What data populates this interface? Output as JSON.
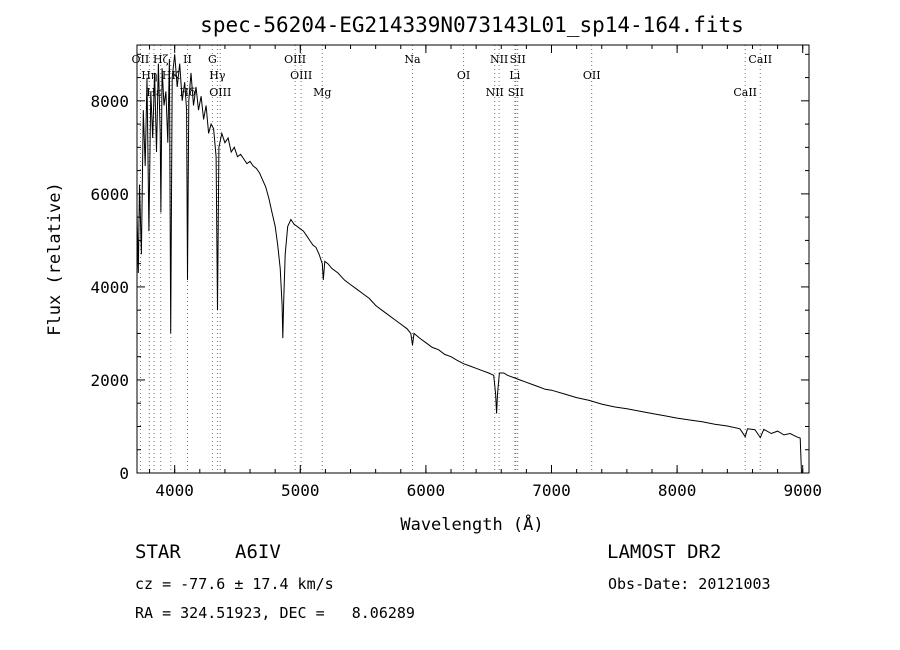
{
  "chart_data": {
    "type": "line",
    "title": "spec-56204-EG214339N073143L01_sp14-164.fits",
    "xlabel": "Wavelength (Å)",
    "ylabel": "Flux (relative)",
    "xlim": [
      3700,
      9050
    ],
    "ylim": [
      0,
      9200
    ],
    "grid": false,
    "xticks": [
      4000,
      5000,
      6000,
      7000,
      8000,
      9000
    ],
    "yticks": [
      0,
      2000,
      4000,
      6000,
      8000
    ],
    "series": [
      {
        "values": [
          [
            3700,
            5600
          ],
          [
            3710,
            4300
          ],
          [
            3720,
            6200
          ],
          [
            3735,
            4700
          ],
          [
            3750,
            7800
          ],
          [
            3765,
            6600
          ],
          [
            3780,
            8500
          ],
          [
            3795,
            5200
          ],
          [
            3810,
            8200
          ],
          [
            3825,
            7200
          ],
          [
            3840,
            8600
          ],
          [
            3855,
            6900
          ],
          [
            3870,
            8800
          ],
          [
            3885,
            7300
          ],
          [
            3890,
            5600
          ],
          [
            3900,
            8700
          ],
          [
            3915,
            7900
          ],
          [
            3930,
            8200
          ],
          [
            3945,
            7100
          ],
          [
            3958,
            8900
          ],
          [
            3968,
            3000
          ],
          [
            3980,
            8500
          ],
          [
            4000,
            9000
          ],
          [
            4020,
            8300
          ],
          [
            4040,
            8800
          ],
          [
            4060,
            8000
          ],
          [
            4080,
            8400
          ],
          [
            4095,
            7800
          ],
          [
            4102,
            4150
          ],
          [
            4112,
            8000
          ],
          [
            4130,
            8600
          ],
          [
            4150,
            7900
          ],
          [
            4170,
            8300
          ],
          [
            4190,
            7800
          ],
          [
            4210,
            8100
          ],
          [
            4230,
            7600
          ],
          [
            4250,
            7900
          ],
          [
            4270,
            7300
          ],
          [
            4290,
            7500
          ],
          [
            4310,
            7400
          ],
          [
            4330,
            6800
          ],
          [
            4341,
            3500
          ],
          [
            4352,
            7000
          ],
          [
            4375,
            7300
          ],
          [
            4400,
            7100
          ],
          [
            4425,
            7200
          ],
          [
            4450,
            6900
          ],
          [
            4475,
            7000
          ],
          [
            4500,
            6800
          ],
          [
            4525,
            6850
          ],
          [
            4550,
            6750
          ],
          [
            4575,
            6650
          ],
          [
            4600,
            6700
          ],
          [
            4625,
            6600
          ],
          [
            4650,
            6550
          ],
          [
            4675,
            6450
          ],
          [
            4700,
            6300
          ],
          [
            4725,
            6150
          ],
          [
            4750,
            5900
          ],
          [
            4775,
            5600
          ],
          [
            4800,
            5300
          ],
          [
            4820,
            4900
          ],
          [
            4840,
            4400
          ],
          [
            4855,
            3600
          ],
          [
            4861,
            2900
          ],
          [
            4868,
            3700
          ],
          [
            4880,
            4700
          ],
          [
            4900,
            5300
          ],
          [
            4925,
            5450
          ],
          [
            4950,
            5350
          ],
          [
            4975,
            5300
          ],
          [
            5000,
            5250
          ],
          [
            5025,
            5200
          ],
          [
            5050,
            5100
          ],
          [
            5075,
            5000
          ],
          [
            5100,
            4900
          ],
          [
            5125,
            4850
          ],
          [
            5150,
            4700
          ],
          [
            5175,
            4500
          ],
          [
            5183,
            4150
          ],
          [
            5195,
            4550
          ],
          [
            5220,
            4500
          ],
          [
            5250,
            4400
          ],
          [
            5300,
            4300
          ],
          [
            5350,
            4150
          ],
          [
            5400,
            4050
          ],
          [
            5450,
            3950
          ],
          [
            5500,
            3850
          ],
          [
            5550,
            3750
          ],
          [
            5600,
            3600
          ],
          [
            5650,
            3500
          ],
          [
            5700,
            3400
          ],
          [
            5750,
            3300
          ],
          [
            5800,
            3200
          ],
          [
            5850,
            3100
          ],
          [
            5880,
            3000
          ],
          [
            5893,
            2750
          ],
          [
            5905,
            3000
          ],
          [
            5950,
            2900
          ],
          [
            6000,
            2800
          ],
          [
            6050,
            2700
          ],
          [
            6100,
            2650
          ],
          [
            6150,
            2550
          ],
          [
            6200,
            2500
          ],
          [
            6250,
            2420
          ],
          [
            6300,
            2350
          ],
          [
            6350,
            2300
          ],
          [
            6400,
            2250
          ],
          [
            6450,
            2200
          ],
          [
            6500,
            2150
          ],
          [
            6540,
            2100
          ],
          [
            6555,
            1700
          ],
          [
            6563,
            1280
          ],
          [
            6570,
            1700
          ],
          [
            6585,
            2150
          ],
          [
            6620,
            2150
          ],
          [
            6650,
            2100
          ],
          [
            6700,
            2050
          ],
          [
            6750,
            2000
          ],
          [
            6800,
            1950
          ],
          [
            6850,
            1900
          ],
          [
            6900,
            1850
          ],
          [
            6950,
            1800
          ],
          [
            7000,
            1780
          ],
          [
            7100,
            1700
          ],
          [
            7200,
            1620
          ],
          [
            7300,
            1560
          ],
          [
            7400,
            1480
          ],
          [
            7500,
            1420
          ],
          [
            7600,
            1380
          ],
          [
            7700,
            1330
          ],
          [
            7800,
            1280
          ],
          [
            7900,
            1230
          ],
          [
            8000,
            1180
          ],
          [
            8100,
            1140
          ],
          [
            8200,
            1100
          ],
          [
            8300,
            1050
          ],
          [
            8400,
            1010
          ],
          [
            8500,
            950
          ],
          [
            8542,
            780
          ],
          [
            8560,
            950
          ],
          [
            8620,
            930
          ],
          [
            8662,
            760
          ],
          [
            8690,
            940
          ],
          [
            8750,
            850
          ],
          [
            8800,
            900
          ],
          [
            8850,
            820
          ],
          [
            8900,
            850
          ],
          [
            8950,
            780
          ],
          [
            8980,
            750
          ],
          [
            8990,
            0
          ]
        ]
      }
    ],
    "lines": [
      {
        "x": 3727,
        "labels": [
          "OII"
        ]
      },
      {
        "x": 3798,
        "labels": [
          "Hη"
        ]
      },
      {
        "x": 3835,
        "labels": [
          "Hε"
        ]
      },
      {
        "x": 3889,
        "labels": [
          "Hζ"
        ]
      },
      {
        "x": 3969,
        "labels": [
          "HK"
        ]
      },
      {
        "x": 4102,
        "labels": [
          "Hδ",
          "II"
        ]
      },
      {
        "x": 4300,
        "labels": [
          "G"
        ]
      },
      {
        "x": 4340,
        "labels": [
          "Hγ"
        ]
      },
      {
        "x": 4363,
        "labels": [
          "OIII"
        ]
      },
      {
        "x": 4959,
        "labels": [
          "OIII"
        ]
      },
      {
        "x": 5007,
        "labels": [
          "OIII"
        ]
      },
      {
        "x": 5175,
        "labels": [
          "Mg"
        ]
      },
      {
        "x": 5893,
        "labels": [
          "Na"
        ]
      },
      {
        "x": 6300,
        "labels": [
          "OI"
        ]
      },
      {
        "x": 6548,
        "labels": [
          "NII"
        ]
      },
      {
        "x": 6583,
        "labels": [
          "NII"
        ]
      },
      {
        "x": 6708,
        "labels": [
          "Li"
        ]
      },
      {
        "x": 6716,
        "labels": [
          "SII"
        ]
      },
      {
        "x": 6731,
        "labels": [
          "SII"
        ]
      },
      {
        "x": 7320,
        "labels": [
          "OII"
        ]
      },
      {
        "x": 8542,
        "labels": [
          "CaII"
        ]
      },
      {
        "x": 8662,
        "labels": [
          "CaII"
        ]
      }
    ],
    "colors": {
      "spectrum": "#000000",
      "line_markers": "#e04040"
    }
  },
  "info": {
    "object_class": "STAR",
    "subclass": "A6IV",
    "survey": "LAMOST DR2",
    "cz": "cz = -77.6 ± 17.4 km/s",
    "obs_date": "Obs-Date: 20121003",
    "coords": "RA = 324.51923, DEC =   8.06289"
  }
}
